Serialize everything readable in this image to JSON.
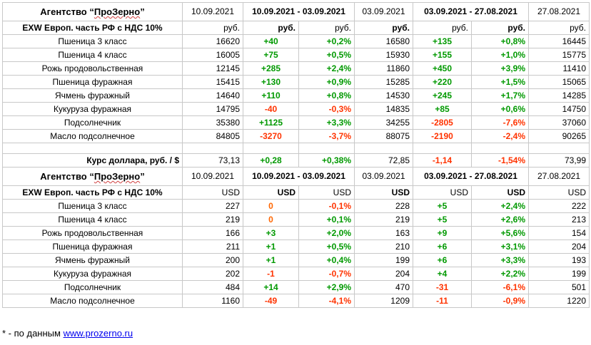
{
  "agency": {
    "pre": "Агентство “",
    "name": "ПроЗерно",
    "post": "”"
  },
  "exw_label": "EXW Европ. часть РФ с НДС 10%",
  "dates": {
    "current": "10.09.2021",
    "range1": "10.09.2021 - 03.09.2021",
    "mid": "03.09.2021",
    "range2": "03.09.2021 - 27.08.2021",
    "old": "27.08.2021"
  },
  "rub_section": {
    "units": [
      "руб.",
      "руб.",
      "руб.",
      "руб.",
      "руб.",
      "руб.",
      "руб."
    ],
    "rows": [
      {
        "name": "Пшеница 3 класс",
        "v1": "16620",
        "d1": "+40",
        "p1": "+0,2%",
        "v2": "16580",
        "d2": "+135",
        "p2": "+0,8%",
        "v3": "16445"
      },
      {
        "name": "Пшеница 4 класс",
        "v1": "16005",
        "d1": "+75",
        "p1": "+0,5%",
        "v2": "15930",
        "d2": "+155",
        "p2": "+1,0%",
        "v3": "15775"
      },
      {
        "name": "Рожь продовольственная",
        "v1": "12145",
        "d1": "+285",
        "p1": "+2,4%",
        "v2": "11860",
        "d2": "+450",
        "p2": "+3,9%",
        "v3": "11410"
      },
      {
        "name": "Пшеница фуражная",
        "v1": "15415",
        "d1": "+130",
        "p1": "+0,9%",
        "v2": "15285",
        "d2": "+220",
        "p2": "+1,5%",
        "v3": "15065"
      },
      {
        "name": "Ячмень фуражный",
        "v1": "14640",
        "d1": "+110",
        "p1": "+0,8%",
        "v2": "14530",
        "d2": "+245",
        "p2": "+1,7%",
        "v3": "14285"
      },
      {
        "name": "Кукуруза фуражная",
        "v1": "14795",
        "d1": "-40",
        "p1": "-0,3%",
        "v2": "14835",
        "d2": "+85",
        "p2": "+0,6%",
        "v3": "14750"
      },
      {
        "name": "Подсолнечник",
        "v1": "35380",
        "d1": "+1125",
        "p1": "+3,3%",
        "v2": "34255",
        "d2": "-2805",
        "p2": "-7,6%",
        "v3": "37060"
      },
      {
        "name": "Масло подсолнечное",
        "v1": "84805",
        "d1": "-3270",
        "p1": "-3,7%",
        "v2": "88075",
        "d2": "-2190",
        "p2": "-2,4%",
        "v3": "90265"
      }
    ],
    "usd_rate": {
      "name": "Курс доллара, руб. / $",
      "v1": "73,13",
      "d1": "+0,28",
      "p1": "+0,38%",
      "v2": "72,85",
      "d2": "-1,14",
      "p2": "-1,54%",
      "v3": "73,99"
    }
  },
  "usd_section": {
    "units": [
      "USD",
      "USD",
      "USD",
      "USD",
      "USD",
      "USD",
      "USD"
    ],
    "rows": [
      {
        "name": "Пшеница 3 класс",
        "v1": "227",
        "d1": "0",
        "p1": "-0,1%",
        "v2": "228",
        "d2": "+5",
        "p2": "+2,4%",
        "v3": "222"
      },
      {
        "name": "Пшеница 4 класс",
        "v1": "219",
        "d1": "0",
        "p1": "+0,1%",
        "v2": "219",
        "d2": "+5",
        "p2": "+2,6%",
        "v3": "213"
      },
      {
        "name": "Рожь продовольственная",
        "v1": "166",
        "d1": "+3",
        "p1": "+2,0%",
        "v2": "163",
        "d2": "+9",
        "p2": "+5,6%",
        "v3": "154"
      },
      {
        "name": "Пшеница фуражная",
        "v1": "211",
        "d1": "+1",
        "p1": "+0,5%",
        "v2": "210",
        "d2": "+6",
        "p2": "+3,1%",
        "v3": "204"
      },
      {
        "name": "Ячмень фуражный",
        "v1": "200",
        "d1": "+1",
        "p1": "+0,4%",
        "v2": "199",
        "d2": "+6",
        "p2": "+3,3%",
        "v3": "193"
      },
      {
        "name": "Кукуруза фуражная",
        "v1": "202",
        "d1": "-1",
        "p1": "-0,7%",
        "v2": "204",
        "d2": "+4",
        "p2": "+2,2%",
        "v3": "199"
      },
      {
        "name": "Подсолнечник",
        "v1": "484",
        "d1": "+14",
        "p1": "+2,9%",
        "v2": "470",
        "d2": "-31",
        "p2": "-6,1%",
        "v3": "501"
      },
      {
        "name": "Масло подсолнечное",
        "v1": "1160",
        "d1": "-49",
        "p1": "-4,1%",
        "v2": "1209",
        "d2": "-11",
        "p2": "-0,9%",
        "v3": "1220"
      }
    ]
  },
  "footnote": {
    "text": "* - по данным ",
    "link": "www.prozerno.ru"
  },
  "colors": {
    "header_bg": "#e6f5dc",
    "positive": "#009900",
    "negative": "#ff3300",
    "zero": "#ff6600",
    "border": "#c8c8c8",
    "link": "#0000ee"
  }
}
